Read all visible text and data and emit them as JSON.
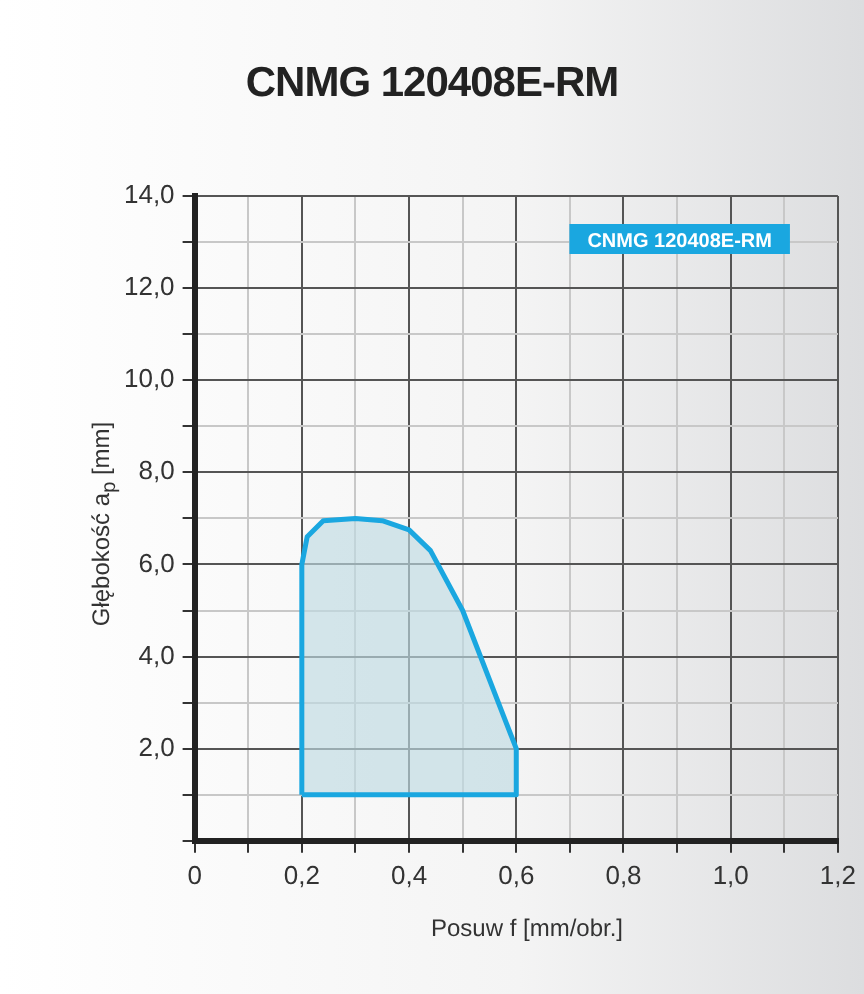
{
  "chart_data": {
    "type": "area",
    "title": "CNMG 120408E-RM",
    "xlabel": "Posuw f [mm/obr.]",
    "ylabel": "Głębokość a$_{p}$ [mm]",
    "x": [
      0.2,
      0.2,
      0.21,
      0.24,
      0.3,
      0.35,
      0.4,
      0.44,
      0.5,
      0.6,
      0.6,
      0.2
    ],
    "series": [
      {
        "name": "CNMG 120408E-RM",
        "color": "#1aa7e0",
        "values": [
          1,
          6,
          6.6,
          6.95,
          7,
          6.95,
          6.75,
          6.3,
          5,
          2,
          1,
          1
        ]
      }
    ],
    "xlim": [
      0,
      1.2
    ],
    "xticks": [
      0,
      {
        "value": 0.1,
        "label": null
      },
      {
        "value": 0.2,
        "label": "0,2"
      },
      {
        "value": 0.3,
        "label": null
      },
      {
        "value": 0.4,
        "label": "0,4"
      },
      {
        "value": 0.5,
        "label": null
      },
      {
        "value": 0.6,
        "label": "0,6"
      },
      {
        "value": 0.7,
        "label": null
      },
      {
        "value": 0.8,
        "label": "0,8"
      },
      {
        "value": 0.9,
        "label": null
      },
      {
        "value": 1.0,
        "label": "1,0"
      },
      {
        "value": 1.1,
        "label": null
      },
      {
        "value": 1.2,
        "label": "1,2"
      }
    ],
    "ylim": [
      0,
      14
    ],
    "yticks": [
      {
        "value": 0,
        "label": null
      },
      {
        "value": 1,
        "label": null
      },
      {
        "value": 2,
        "label": "2,0"
      },
      {
        "value": 3,
        "label": null
      },
      {
        "value": 4,
        "label": "4,0"
      },
      {
        "value": 5,
        "label": null
      },
      {
        "value": 6,
        "label": "6,0"
      },
      {
        "value": 7,
        "label": null
      },
      {
        "value": 8,
        "label": "8,0"
      },
      {
        "value": 9,
        "label": null
      },
      {
        "value": 10,
        "label": "10,0"
      },
      {
        "value": 11,
        "label": null
      },
      {
        "value": 12,
        "label": "12,0"
      },
      {
        "value": 13,
        "label": null
      },
      {
        "value": 14,
        "label": "14,0"
      }
    ],
    "grid": true,
    "legend": "top right",
    "marker": "none",
    "line_style": "solid"
  }
}
